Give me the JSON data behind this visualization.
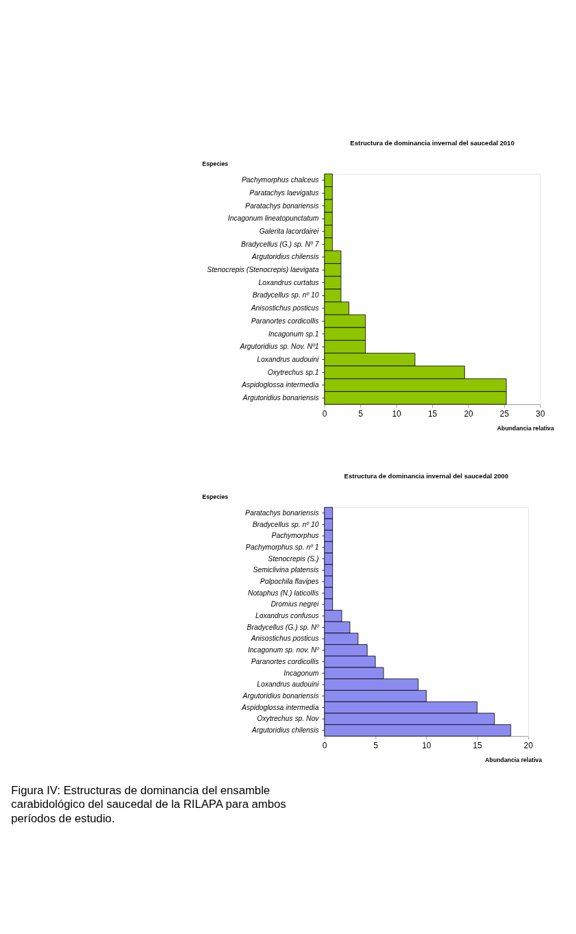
{
  "chart_data": [
    {
      "type": "bar",
      "orientation": "horizontal",
      "title": "Estructura de dominancia invernal del saucedal 2010",
      "ylabel": "Especies",
      "xlabel": "Abundancia relativa",
      "categories": [
        "Pachymorphus chalceus",
        "Paratachys laevigatus",
        "Paratachys bonariensis",
        "Incagonum lineatopunctatum",
        "Galerita lacordairei",
        "Bradycellus (G.) sp. Nº 7",
        "Argutoridius chilensis",
        "Stenocrepis (Stenocrepis) laevigata",
        "Loxandrus curtatus",
        "Bradycellus sp. nº 10",
        "Anisostichus posticus",
        "Paranortes cordicollis",
        "Incagonum sp.1",
        "Argutoridius sp. Nov. Nº1",
        "Loxandrus audouini",
        "Oxytrechus sp.1",
        "Aspidoglossa intermedia",
        "Argutoridius bonariensis"
      ],
      "values": [
        1.1,
        1.1,
        1.1,
        1.1,
        1.1,
        1.1,
        2.3,
        2.3,
        2.3,
        2.3,
        3.4,
        5.7,
        5.7,
        5.7,
        12.6,
        19.5,
        25.3,
        25.3
      ],
      "color": "#8fc400",
      "xlim": [
        0,
        30
      ],
      "xticks": [
        0,
        5,
        10,
        15,
        20,
        25,
        30
      ],
      "grid": false
    },
    {
      "type": "bar",
      "orientation": "horizontal",
      "title": "Estructura de dominancia invernal del saucedal 2000",
      "ylabel": "Especies",
      "xlabel": "Abundancia relativa",
      "categories": [
        "Paratachys bonariensis",
        "Bradycellus sp. nº 10",
        "Pachymorphus",
        "Pachymorphus sp. nº 1",
        "Stenocrepis (S.)",
        "Semiclivina platensis",
        "Polpochila flavipes",
        "Notaphus (N.) laticollis",
        "Dromius negrei",
        "Loxandrus confusus",
        "Bradycellus (G.) sp. Nº",
        "Anisostichus posticus",
        "Incagonum sp. nov. Nº",
        "Paranortes cordicollis",
        "Incagonum",
        "Loxandrus audouini",
        "Argutoridius bonariensis",
        "Aspidoglossa intermedia",
        "Oxytrechus sp. Nov",
        "Argutoridius chilensis"
      ],
      "values": [
        0.8,
        0.8,
        0.8,
        0.8,
        0.8,
        0.8,
        0.8,
        0.8,
        0.8,
        1.7,
        2.5,
        3.3,
        4.2,
        5.0,
        5.8,
        9.2,
        10.0,
        15.0,
        16.7,
        18.3
      ],
      "color": "#8c8cf0",
      "xlim": [
        0,
        20
      ],
      "xticks": [
        0,
        5,
        10,
        15,
        20
      ],
      "grid": false,
      "annotations": [
        "Figura IV: Estructuras de dominancia del ensamble carabidológico del saucedal de la RILAPA para ambos períodos de estudio."
      ]
    }
  ]
}
